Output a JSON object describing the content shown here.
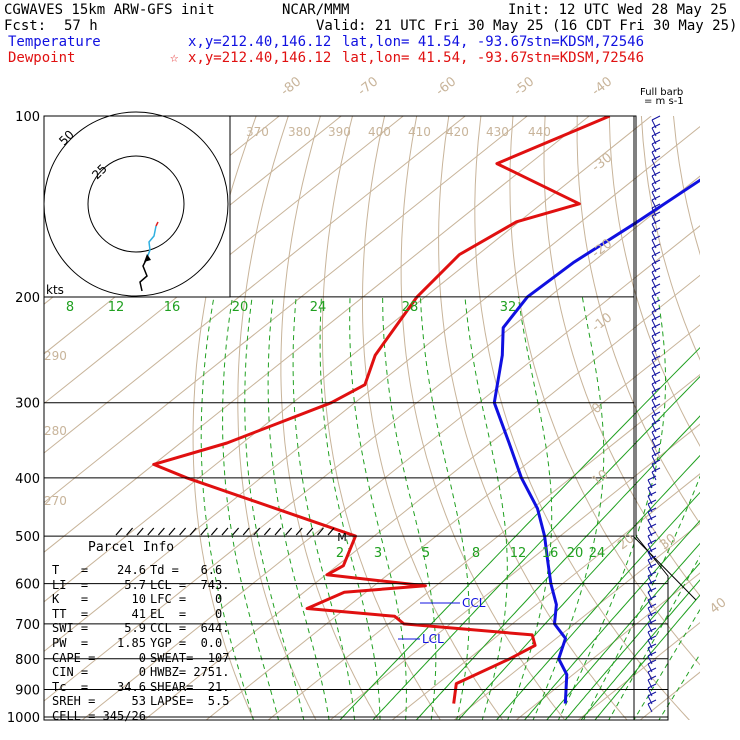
{
  "header": {
    "model": "CGWAVES 15km ARW-GFS init",
    "agency": "NCAR/MMM",
    "init": "Init: 12 UTC Wed 28 May 25",
    "fcst_label": "Fcst:",
    "fcst_value": "57 h",
    "valid": "Valid: 21 UTC Fri 30 May 25 (16 CDT Fri 30 May 25)",
    "temp_label": "Temperature",
    "temp_xy": "x,y=212.40,146.12",
    "temp_latlon": "lat,lon= 41.54, -93.67",
    "temp_stn": "stn=KDSM,72546",
    "dew_label": "Dewpoint",
    "dew_marker": "☆",
    "dew_xy": "x,y=212.40,146.12",
    "dew_latlon": "lat,lon= 41.54, -93.67",
    "dew_stn": "stn=KDSM,72546"
  },
  "hodograph": {
    "ring_labels": [
      "50",
      "25"
    ],
    "units": "kts"
  },
  "barb_legend": {
    "line1": "Full barb",
    "line2": "= m s-1"
  },
  "labels": {
    "ccl": "CCL",
    "lcl": "LCL",
    "m_marker": "M"
  },
  "parcel_info": {
    "title": "Parcel Info",
    "rows": [
      {
        "a": "T   =    24.6",
        "b": "Td =   6.6"
      },
      {
        "a": "LI  =     5.7",
        "b": "LCL =  743."
      },
      {
        "a": "K   =      10",
        "b": "LFC =    0"
      },
      {
        "a": "TT  =      41",
        "b": "EL  =    0"
      },
      {
        "a": "SWI =     5.9",
        "b": "CCL =  644."
      },
      {
        "a": "PW  =    1.85",
        "b": "YGP =  0.0"
      },
      {
        "a": "CAPE =      0",
        "b": "SWEAT=  107"
      },
      {
        "a": "CIN =       0",
        "b": "HWBZ= 2751."
      },
      {
        "a": "Tc  =    34.6",
        "b": "SHEAR=  21."
      },
      {
        "a": "SREH =     53",
        "b": "LAPSE=  5.5"
      },
      {
        "a": "CELL = 345/26",
        "b": ""
      }
    ]
  },
  "colors": {
    "temperature": "#1010e0",
    "dewpoint": "#e01010",
    "isotherm": "#c8b49a",
    "mixing_ratio": "#20a020",
    "isobar": "#000000"
  },
  "chart_data": {
    "type": "line",
    "pressure_levels": [
      100,
      200,
      300,
      400,
      500,
      600,
      700,
      800,
      900,
      1000
    ],
    "isotherm_labels": [
      "-80",
      "-70",
      "-60",
      "-50",
      "-40",
      "-30",
      "-20",
      "-10",
      "0",
      "10",
      "20",
      "30",
      "40"
    ],
    "theta_labels": [
      "370",
      "380",
      "390",
      "400",
      "410",
      "420",
      "430",
      "440",
      "290",
      "280",
      "270"
    ],
    "mixing_ratio_upper_labels": [
      "8",
      "12",
      "16",
      "20",
      "24",
      "28",
      "32"
    ],
    "mixing_ratio_lower_labels": [
      "2",
      "3",
      "5",
      "8",
      "12",
      "16",
      "20",
      "24"
    ],
    "series": [
      {
        "name": "Temperature",
        "points": [
          [
            100,
            -55.4
          ],
          [
            120,
            -58.5
          ],
          [
            150,
            -60.9
          ],
          [
            175,
            -63.0
          ],
          [
            200,
            -63.5
          ],
          [
            225,
            -61.2
          ],
          [
            250,
            -55.8
          ],
          [
            300,
            -47.5
          ],
          [
            350,
            -37.0
          ],
          [
            400,
            -28.0
          ],
          [
            450,
            -19.2
          ],
          [
            500,
            -12.5
          ],
          [
            550,
            -7.0
          ],
          [
            600,
            -1.9
          ],
          [
            650,
            3.2
          ],
          [
            700,
            6.8
          ],
          [
            740,
            11.5
          ],
          [
            800,
            14.5
          ],
          [
            850,
            19.0
          ],
          [
            950,
            24.6
          ]
        ]
      },
      {
        "name": "Dewpoint",
        "points": [
          [
            100,
            -86.7
          ],
          [
            120,
            -95.3
          ],
          [
            140,
            -73.9
          ],
          [
            150,
            -80.4
          ],
          [
            170,
            -83.0
          ],
          [
            200,
            -81.3
          ],
          [
            250,
            -76.3
          ],
          [
            280,
            -72.0
          ],
          [
            300,
            -73.8
          ],
          [
            350,
            -82.5
          ],
          [
            380,
            -90.0
          ],
          [
            400,
            -82.0
          ],
          [
            500,
            -43.0
          ],
          [
            560,
            -39.0
          ],
          [
            580,
            -39.8
          ],
          [
            605,
            -21.7
          ],
          [
            620,
            -33.5
          ],
          [
            660,
            -36.2
          ],
          [
            680,
            -20.5
          ],
          [
            700,
            -17.5
          ],
          [
            730,
            5.4
          ],
          [
            760,
            8.0
          ],
          [
            800,
            6.6
          ],
          [
            880,
            3.0
          ],
          [
            950,
            6.6
          ]
        ]
      }
    ]
  }
}
